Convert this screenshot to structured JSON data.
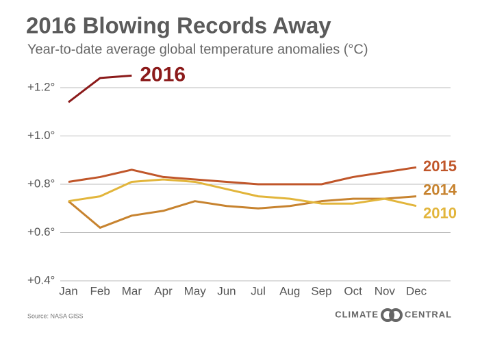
{
  "chart_data": {
    "type": "line",
    "title": "2016 Blowing Records Away",
    "subtitle": "Year-to-date average global temperature anomalies (°C)",
    "categories": [
      "Jan",
      "Feb",
      "Mar",
      "Apr",
      "May",
      "Jun",
      "Jul",
      "Aug",
      "Sep",
      "Oct",
      "Nov",
      "Dec"
    ],
    "series": [
      {
        "name": "2016",
        "color": "#8b1a1a",
        "values": [
          1.14,
          1.24,
          1.25,
          null,
          null,
          null,
          null,
          null,
          null,
          null,
          null,
          null
        ]
      },
      {
        "name": "2015",
        "color": "#c0562a",
        "values": [
          0.81,
          0.83,
          0.86,
          0.83,
          0.82,
          0.81,
          0.8,
          0.8,
          0.8,
          0.83,
          0.85,
          0.87
        ]
      },
      {
        "name": "2014",
        "color": "#c7832f",
        "values": [
          0.73,
          0.62,
          0.67,
          0.69,
          0.73,
          0.71,
          0.7,
          0.71,
          0.73,
          0.74,
          0.74,
          0.75
        ]
      },
      {
        "name": "2010",
        "color": "#e2b53b",
        "values": [
          0.73,
          0.75,
          0.81,
          0.82,
          0.81,
          0.78,
          0.75,
          0.74,
          0.72,
          0.72,
          0.74,
          0.71
        ]
      }
    ],
    "ylim": [
      0.4,
      1.2
    ],
    "yticks": [
      {
        "value": 0.4,
        "label": "+0.4°"
      },
      {
        "value": 0.6,
        "label": "+0.6°"
      },
      {
        "value": 0.8,
        "label": "+0.8°"
      },
      {
        "value": 1.0,
        "label": "+1.0°"
      },
      {
        "value": 1.2,
        "label": "+1.2°"
      }
    ],
    "grid": true
  },
  "footer": {
    "source": "Source: NASA GISS",
    "logo_left": "CLIMATE",
    "logo_right": "CENTRAL"
  }
}
